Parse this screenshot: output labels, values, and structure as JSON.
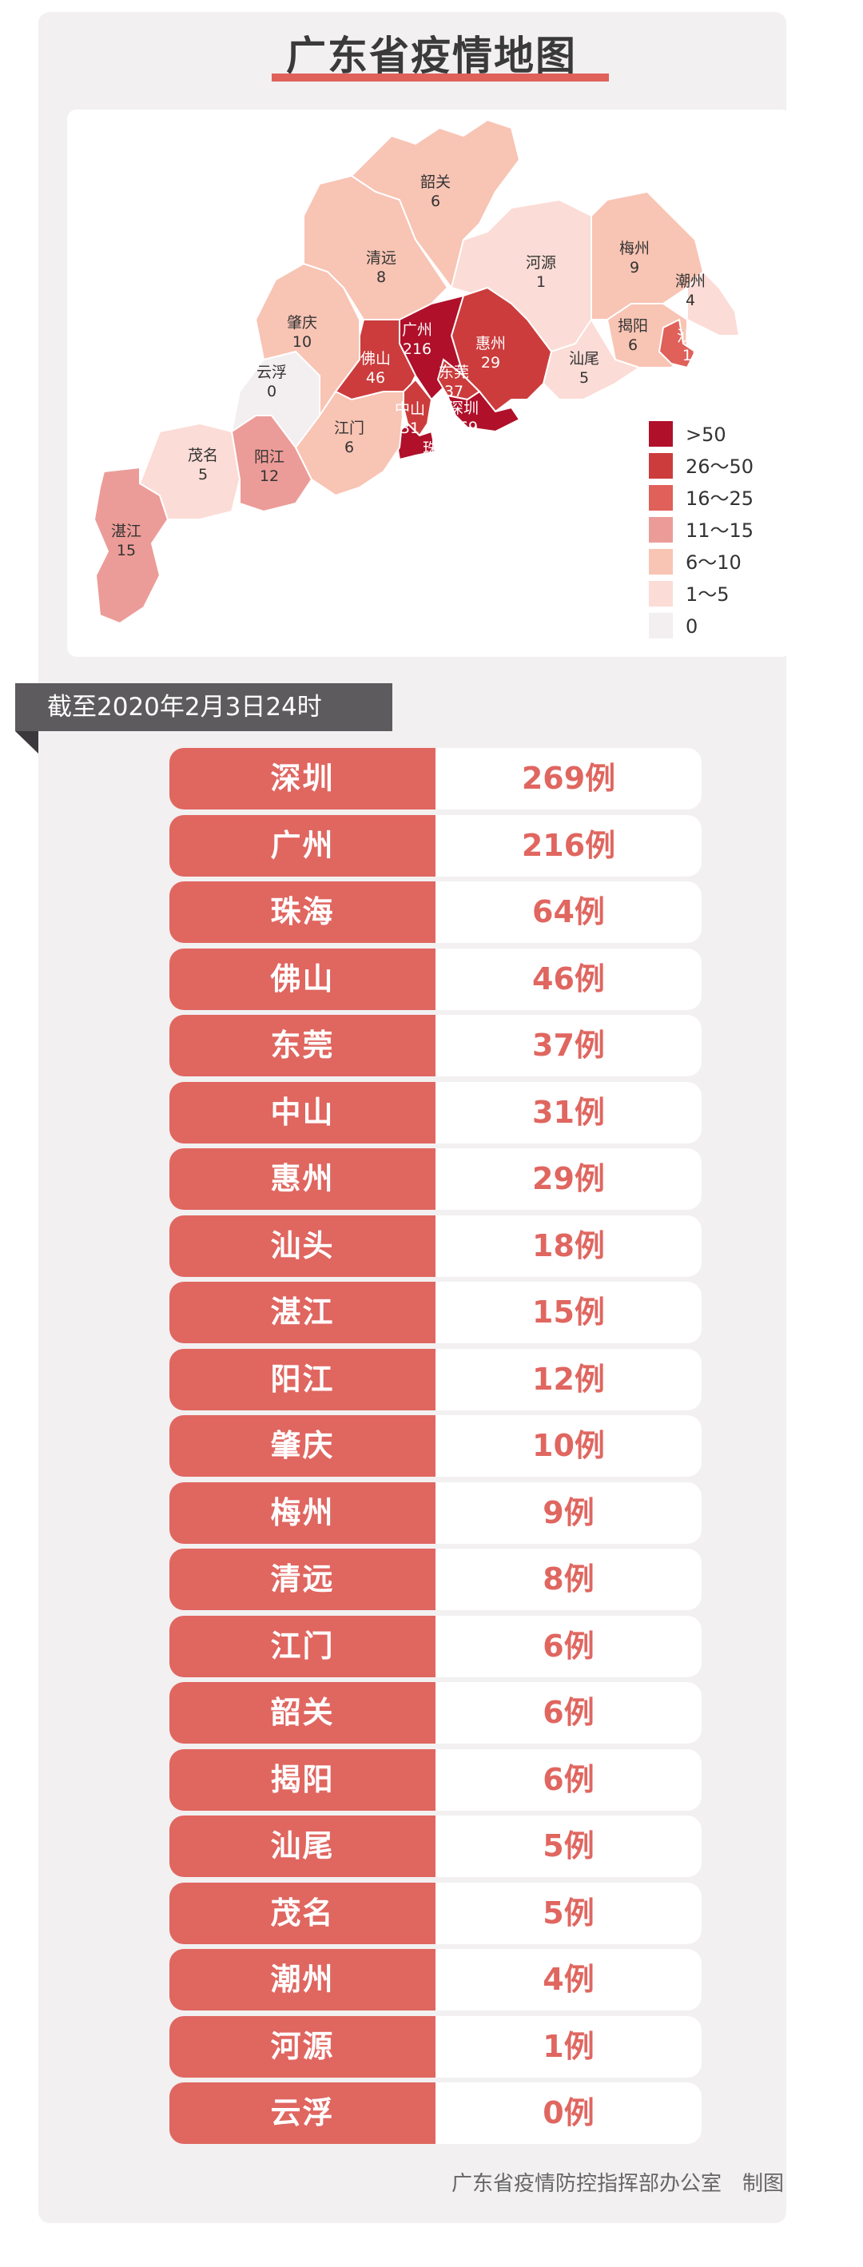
{
  "title": "广东省疫情地图",
  "date": "截至2020年2月3日24时",
  "footer": "广东省疫情防控指挥部办公室　制图",
  "colors": {
    "accent": "#e06660",
    "banner": "#5d5b5d"
  },
  "chart_data": {
    "type": "choropleth-map",
    "title": "广东省疫情地图",
    "legend": {
      "placement": "bottom-right",
      "bins": [
        {
          "label": ">50",
          "min": 51,
          "max": 100000,
          "color": "#b0102a"
        },
        {
          "label": "26～50",
          "min": 26,
          "max": 50,
          "color": "#cc3c3c"
        },
        {
          "label": "16～25",
          "min": 16,
          "max": 25,
          "color": "#e0605a"
        },
        {
          "label": "11～15",
          "min": 11,
          "max": 15,
          "color": "#ec9c98"
        },
        {
          "label": "6～10",
          "min": 6,
          "max": 10,
          "color": "#f8c4b4"
        },
        {
          "label": "1～5",
          "min": 1,
          "max": 5,
          "color": "#fbdcd6"
        },
        {
          "label": "0",
          "min": 0,
          "max": 0,
          "color": "#f3eef0"
        }
      ]
    },
    "regions": {
      "shenzhen": {
        "name": "深圳",
        "value": 269
      },
      "guangzhou": {
        "name": "广州",
        "value": 216
      },
      "zhuhai": {
        "name": "珠海",
        "value": 64
      },
      "foshan": {
        "name": "佛山",
        "value": 46
      },
      "dongguan": {
        "name": "东莞",
        "value": 37
      },
      "zhongshan": {
        "name": "中山",
        "value": 31
      },
      "huizhou": {
        "name": "惠州",
        "value": 29
      },
      "shantou": {
        "name": "汕头",
        "value": 18
      },
      "zhanjiang": {
        "name": "湛江",
        "value": 15
      },
      "yangjiang": {
        "name": "阳江",
        "value": 12
      },
      "zhaoqing": {
        "name": "肇庆",
        "value": 10
      },
      "meizhou": {
        "name": "梅州",
        "value": 9
      },
      "qingyuan": {
        "name": "清远",
        "value": 8
      },
      "jiangmen": {
        "name": "江门",
        "value": 6
      },
      "shaoguan": {
        "name": "韶关",
        "value": 6
      },
      "jieyang": {
        "name": "揭阳",
        "value": 6
      },
      "shanwei": {
        "name": "汕尾",
        "value": 5
      },
      "maoming": {
        "name": "茂名",
        "value": 5
      },
      "chaozhou": {
        "name": "潮州",
        "value": 4
      },
      "heyuan": {
        "name": "河源",
        "value": 1
      },
      "yunfu": {
        "name": "云浮",
        "value": 0
      }
    }
  },
  "table": [
    {
      "city": "深圳",
      "count": "269例"
    },
    {
      "city": "广州",
      "count": "216例"
    },
    {
      "city": "珠海",
      "count": "64例"
    },
    {
      "city": "佛山",
      "count": "46例"
    },
    {
      "city": "东莞",
      "count": "37例"
    },
    {
      "city": "中山",
      "count": "31例"
    },
    {
      "city": "惠州",
      "count": "29例"
    },
    {
      "city": "汕头",
      "count": "18例"
    },
    {
      "city": "湛江",
      "count": "15例"
    },
    {
      "city": "阳江",
      "count": "12例"
    },
    {
      "city": "肇庆",
      "count": "10例"
    },
    {
      "city": "梅州",
      "count": "9例"
    },
    {
      "city": "清远",
      "count": "8例"
    },
    {
      "city": "江门",
      "count": "6例"
    },
    {
      "city": "韶关",
      "count": "6例"
    },
    {
      "city": "揭阳",
      "count": "6例"
    },
    {
      "city": "汕尾",
      "count": "5例"
    },
    {
      "city": "茂名",
      "count": "5例"
    },
    {
      "city": "潮州",
      "count": "4例"
    },
    {
      "city": "河源",
      "count": "1例"
    },
    {
      "city": "云浮",
      "count": "0例"
    }
  ]
}
